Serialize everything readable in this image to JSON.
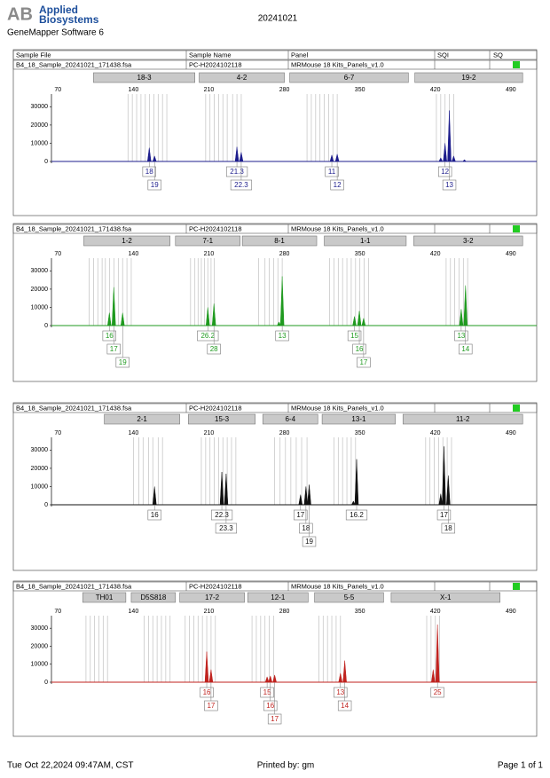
{
  "header": {
    "logo": "AB",
    "brand_line1": "Applied",
    "brand_line2": "Biosystems",
    "software": "GeneMapper Software 6",
    "date": "20241021"
  },
  "columns": [
    "Sample File",
    "Sample Name",
    "Panel",
    "SQI",
    "SQ"
  ],
  "chart_data": [
    {
      "type": "peaks",
      "sample_file": "B4_18_Sample_20241021_171438.fsa",
      "sample_name": "PC-H2024102118",
      "panel": "MRMouse 18 Kits_Panels_v1.0",
      "sq_color": "#22cc22",
      "color": "#1c1c8c",
      "xlim": [
        64,
        514
      ],
      "xticks": [
        70,
        140,
        210,
        280,
        350,
        420,
        490
      ],
      "ylim": [
        0,
        37000
      ],
      "yticks": [
        0,
        10000,
        20000,
        30000
      ],
      "markers": [
        {
          "name": "18-3",
          "start": 103,
          "end": 197
        },
        {
          "name": "4-2",
          "start": 201,
          "end": 280
        },
        {
          "name": "6-7",
          "start": 285,
          "end": 395
        },
        {
          "name": "19-2",
          "start": 401,
          "end": 501
        }
      ],
      "bins": [
        135,
        139,
        143,
        147,
        151,
        155,
        159,
        163,
        167,
        171,
        207,
        211,
        215,
        219,
        223,
        227,
        232,
        236,
        240,
        301,
        305,
        309,
        313,
        317,
        321,
        325,
        329,
        421,
        425,
        429,
        433,
        437
      ],
      "peaks": {
        "x": [
          154.7,
          159.6,
          236,
          240,
          324,
          329,
          425,
          429,
          433,
          437,
          447
        ],
        "values": [
          7500,
          3000,
          8000,
          5000,
          3500,
          4000,
          2000,
          10000,
          28000,
          3000,
          1000
        ],
        "labels": [
          "18",
          "19",
          "21.3",
          "22.3",
          "11",
          "12",
          null,
          "12",
          "13",
          null,
          null
        ]
      }
    },
    {
      "type": "peaks",
      "sample_file": "B4_18_Sample_20241021_171438.fsa",
      "sample_name": "PC-H2024102118",
      "panel": "MRMouse 18 Kits_Panels_v1.0",
      "sq_color": "#22cc22",
      "color": "#1f9a1f",
      "xlim": [
        64,
        514
      ],
      "xticks": [
        70,
        140,
        210,
        280,
        350,
        420,
        490
      ],
      "ylim": [
        0,
        37000
      ],
      "yticks": [
        0,
        10000,
        20000,
        30000
      ],
      "markers": [
        {
          "name": "1-2",
          "start": 94,
          "end": 174
        },
        {
          "name": "7-1",
          "start": 179,
          "end": 239
        },
        {
          "name": "8-1",
          "start": 241,
          "end": 310
        },
        {
          "name": "1-1",
          "start": 317,
          "end": 393
        },
        {
          "name": "3-2",
          "start": 400,
          "end": 501
        }
      ],
      "bins": [
        99,
        103,
        107,
        111,
        114,
        118,
        122,
        126,
        130,
        134,
        138,
        193,
        197,
        200,
        203,
        206,
        209,
        212,
        215,
        256,
        262,
        266,
        270,
        274,
        278,
        322,
        326,
        330,
        334,
        338,
        342,
        346,
        350,
        354,
        358,
        430,
        434,
        438,
        442,
        446,
        450
      ],
      "peaks": {
        "x": [
          117.7,
          121.8,
          130,
          209,
          214.7,
          275,
          278,
          345,
          349.5,
          353.5,
          444,
          448
        ],
        "values": [
          7000,
          21000,
          7000,
          10000,
          12000,
          2000,
          27000,
          5000,
          8000,
          4000,
          9000,
          22000
        ],
        "labels": [
          "16",
          "17",
          "19",
          "26.2",
          "28",
          null,
          "13",
          "15",
          "16",
          "17",
          "13",
          "14"
        ]
      }
    },
    {
      "type": "peaks",
      "sample_file": "B4_18_Sample_20241021_171438.fsa",
      "sample_name": "PC-H2024102118",
      "panel": "MRMouse 18 Kits_Panels_v1.0",
      "sq_color": "#22cc22",
      "color": "#111111",
      "xlim": [
        64,
        514
      ],
      "xticks": [
        70,
        140,
        210,
        280,
        350,
        420,
        490
      ],
      "ylim": [
        0,
        37000
      ],
      "yticks": [
        0,
        10000,
        20000,
        30000
      ],
      "markers": [
        {
          "name": "2-1",
          "start": 113,
          "end": 183
        },
        {
          "name": "15-3",
          "start": 191,
          "end": 253
        },
        {
          "name": "6-4",
          "start": 260,
          "end": 311
        },
        {
          "name": "13-1",
          "start": 315,
          "end": 383
        },
        {
          "name": "11-2",
          "start": 390,
          "end": 501
        }
      ],
      "bins": [
        140,
        145,
        149,
        154,
        158,
        163,
        167,
        203,
        207,
        211,
        215,
        219,
        223,
        227,
        231,
        235,
        271,
        276,
        281,
        286,
        291,
        296,
        301,
        326,
        330,
        334,
        338,
        342,
        346,
        411,
        415,
        419,
        423,
        427,
        431,
        435
      ],
      "peaks": {
        "x": [
          159.6,
          222,
          226,
          295,
          300,
          303,
          344,
          347,
          425,
          428,
          432
        ],
        "values": [
          10000,
          18000,
          17000,
          5500,
          10000,
          11000,
          2000,
          25000,
          6000,
          32000,
          16000
        ],
        "labels": [
          "16",
          "22.3",
          "23.3",
          "17",
          "18",
          "19",
          null,
          "16.2",
          null,
          "17",
          "18"
        ]
      }
    },
    {
      "type": "peaks",
      "sample_file": "B4_18_Sample_20241021_171438.fsa",
      "sample_name": "PC-H2024102118",
      "panel": "MRMouse 18 Kits_Panels_v1.0",
      "sq_color": "#22cc22",
      "color": "#c0221e",
      "xlim": [
        64,
        514
      ],
      "xticks": [
        70,
        140,
        210,
        280,
        350,
        420,
        490
      ],
      "ylim": [
        0,
        37000
      ],
      "yticks": [
        0,
        10000,
        20000,
        30000
      ],
      "markers": [
        {
          "name": "TH01",
          "start": 93,
          "end": 133
        },
        {
          "name": "D5S818",
          "start": 138,
          "end": 179
        },
        {
          "name": "17-2",
          "start": 183,
          "end": 243
        },
        {
          "name": "12-1",
          "start": 246,
          "end": 302
        },
        {
          "name": "5-5",
          "start": 308,
          "end": 372
        },
        {
          "name": "X-1",
          "start": 379,
          "end": 480
        }
      ],
      "bins": [
        96,
        100,
        104,
        108,
        112,
        116,
        150,
        154,
        158,
        162,
        166,
        170,
        174,
        188,
        192,
        196,
        200,
        204,
        208,
        212,
        216,
        250,
        254,
        258,
        262,
        266,
        270,
        312,
        316,
        320,
        324,
        328,
        332,
        412,
        416,
        420,
        424
      ],
      "peaks": {
        "x": [
          208,
          212,
          264,
          267,
          271,
          332,
          336,
          418,
          422
        ],
        "values": [
          17000,
          7000,
          3000,
          3500,
          4000,
          5000,
          12000,
          7000,
          32000
        ],
        "labels": [
          "16",
          "17",
          "15",
          "16",
          "17",
          "13",
          "14",
          null,
          "25"
        ]
      }
    }
  ],
  "footer": {
    "timestamp": "Tue Oct 22,2024 09:47AM, CST",
    "printed_by": "Printed by: gm",
    "page": "Page 1 of 1"
  }
}
